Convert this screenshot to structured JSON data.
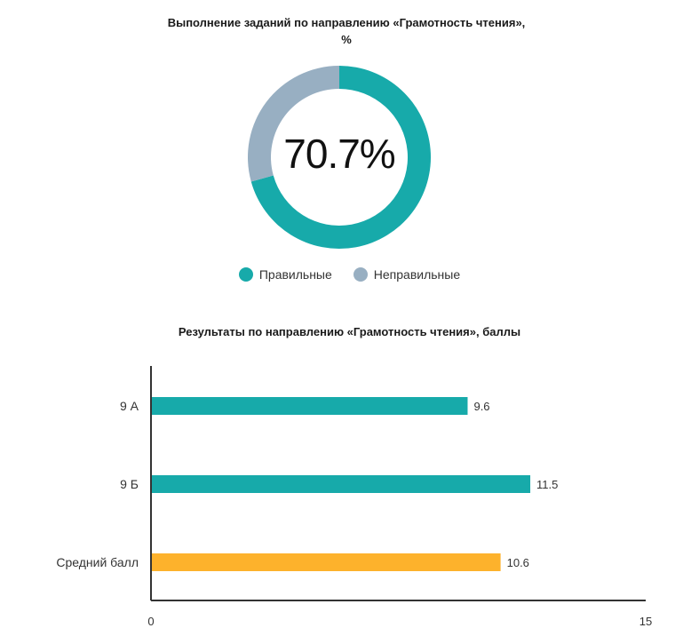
{
  "chart_data": [
    {
      "type": "pie",
      "title": "Выполнение заданий по направлению «Грамотность чтения»,",
      "title_line2": "%",
      "center_label": "70.7%",
      "categories": [
        "Правильные",
        "Неправильные"
      ],
      "values": [
        70.7,
        29.3
      ],
      "colors": [
        "#17AAAA",
        "#98AFC2"
      ],
      "legend_position": "bottom"
    },
    {
      "type": "bar",
      "orientation": "horizontal",
      "title": "Результаты по направлению «Грамотность чтения», баллы",
      "categories": [
        "9 А",
        "9 Б",
        "Средний балл"
      ],
      "values": [
        9.6,
        11.5,
        10.6
      ],
      "value_labels": [
        "9.6",
        "11.5",
        "10.6"
      ],
      "colors": [
        "#17AAAA",
        "#17AAAA",
        "#FDB22C"
      ],
      "xlim": [
        0,
        15
      ],
      "xticks": [
        "0",
        "15"
      ],
      "grid": false
    }
  ]
}
